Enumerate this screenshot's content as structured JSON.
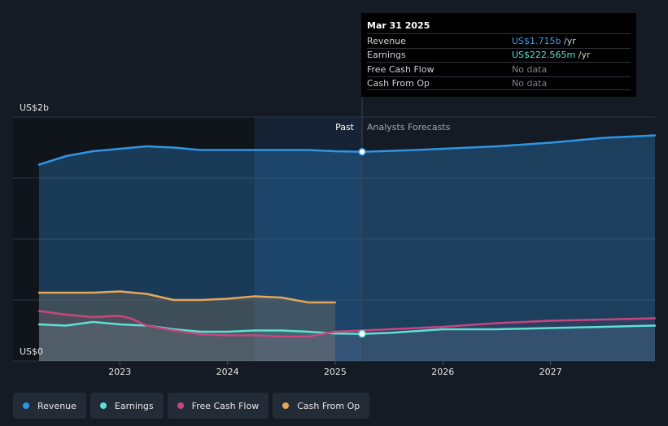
{
  "tooltip": {
    "date": "Mar 31 2025",
    "rows": [
      {
        "name": "Revenue",
        "value": "US$1.715b",
        "unit": "/yr"
      },
      {
        "name": "Earnings",
        "value": "US$222.565m",
        "unit": "/yr"
      },
      {
        "name": "Free Cash Flow",
        "value": "No data"
      },
      {
        "name": "Cash From Op",
        "value": "No data"
      }
    ]
  },
  "regions": {
    "past": "Past",
    "forecast": "Analysts Forecasts"
  },
  "legend": [
    {
      "label": "Revenue",
      "color": "#2f95e3"
    },
    {
      "label": "Earnings",
      "color": "#5ee0d4"
    },
    {
      "label": "Free Cash Flow",
      "color": "#c8457e"
    },
    {
      "label": "Cash From Op",
      "color": "#e6a65a"
    }
  ],
  "chart_data": {
    "type": "line",
    "y_unit_labels": [
      "US$2b",
      "US$0"
    ],
    "ylim": [
      0,
      2.0
    ],
    "xlim": [
      2022.25,
      2027.97
    ],
    "x_ticks": [
      "2023",
      "2024",
      "2025",
      "2026",
      "2027"
    ],
    "x_tick_values": [
      2023,
      2024,
      2025,
      2026,
      2027
    ],
    "divider_x": 2025.25,
    "highlight_start_x": 2024.25,
    "grid": true,
    "series": [
      {
        "name": "Revenue",
        "color": "#2f95e3",
        "x": [
          2022.25,
          2022.5,
          2022.75,
          2023.0,
          2023.25,
          2023.5,
          2023.75,
          2024.0,
          2024.25,
          2024.5,
          2024.75,
          2025.0,
          2025.25,
          2025.75,
          2026.0,
          2026.5,
          2027.0,
          2027.5,
          2027.97
        ],
        "values": [
          1.61,
          1.68,
          1.72,
          1.74,
          1.76,
          1.75,
          1.73,
          1.73,
          1.73,
          1.73,
          1.73,
          1.72,
          1.715,
          1.73,
          1.74,
          1.76,
          1.79,
          1.83,
          1.85
        ]
      },
      {
        "name": "Earnings",
        "color": "#5ee0d4",
        "x": [
          2022.25,
          2022.5,
          2022.75,
          2023.0,
          2023.25,
          2023.5,
          2023.75,
          2024.0,
          2024.25,
          2024.5,
          2024.75,
          2025.0,
          2025.25,
          2025.5,
          2026.0,
          2026.5,
          2027.0,
          2027.5,
          2027.97
        ],
        "values": [
          0.3,
          0.29,
          0.32,
          0.3,
          0.29,
          0.26,
          0.24,
          0.24,
          0.25,
          0.25,
          0.24,
          0.225,
          0.223,
          0.23,
          0.26,
          0.26,
          0.27,
          0.28,
          0.29
        ]
      },
      {
        "name": "Free Cash Flow",
        "color": "#c8457e",
        "x": [
          2022.25,
          2022.5,
          2022.75,
          2023.0,
          2023.1,
          2023.25,
          2023.5,
          2023.75,
          2024.0,
          2024.25,
          2024.5,
          2024.75,
          2025.0,
          2025.25,
          2025.75,
          2026.0,
          2026.5,
          2027.0,
          2027.5,
          2027.97
        ],
        "values": [
          0.41,
          0.38,
          0.36,
          0.37,
          0.35,
          0.29,
          0.25,
          0.22,
          0.21,
          0.21,
          0.2,
          0.2,
          0.24,
          0.25,
          0.27,
          0.28,
          0.31,
          0.33,
          0.34,
          0.35
        ]
      },
      {
        "name": "Cash From Op",
        "color": "#e6a65a",
        "x": [
          2022.25,
          2022.5,
          2022.75,
          2023.0,
          2023.25,
          2023.5,
          2023.75,
          2024.0,
          2024.25,
          2024.5,
          2024.75,
          2025.0
        ],
        "values": [
          0.56,
          0.56,
          0.56,
          0.57,
          0.55,
          0.5,
          0.5,
          0.51,
          0.53,
          0.52,
          0.48,
          0.48
        ]
      }
    ],
    "markers": [
      {
        "series": "Revenue",
        "x": 2025.25,
        "y": 1.715
      },
      {
        "series": "Earnings",
        "x": 2025.25,
        "y": 0.223
      }
    ]
  }
}
